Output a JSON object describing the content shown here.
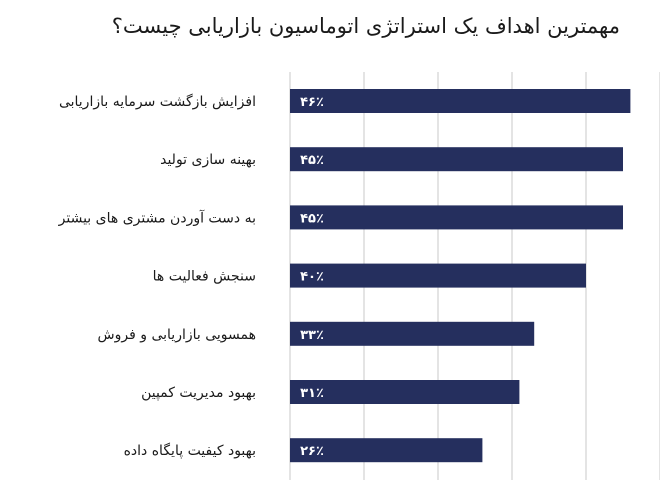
{
  "chart_data": {
    "type": "bar",
    "orientation": "horizontal",
    "title": "مهمترین اهداف یک استراتژی اتوماسیون بازاریابی چیست؟",
    "categories": [
      "افزایش بازگشت سرمایه بازاریابی",
      "بهینه سازی تولید",
      "به دست آوردن مشتری های بیشتر",
      "سنجش فعالیت ها",
      "همسویی بازاریابی و فروش",
      "بهبود مدیریت کمپین",
      "بهبود کیفیت پایگاه داده"
    ],
    "values": [
      46,
      45,
      45,
      40,
      33,
      31,
      26
    ],
    "value_labels": [
      "۴۶٪",
      "۴۵٪",
      "۴۵٪",
      "۴۰٪",
      "۳۳٪",
      "۳۱٪",
      "۲۶٪"
    ],
    "xlim": [
      0,
      60
    ],
    "grid": true,
    "bar_color": "#252f5e",
    "grid_color": "#c8c8c8"
  }
}
